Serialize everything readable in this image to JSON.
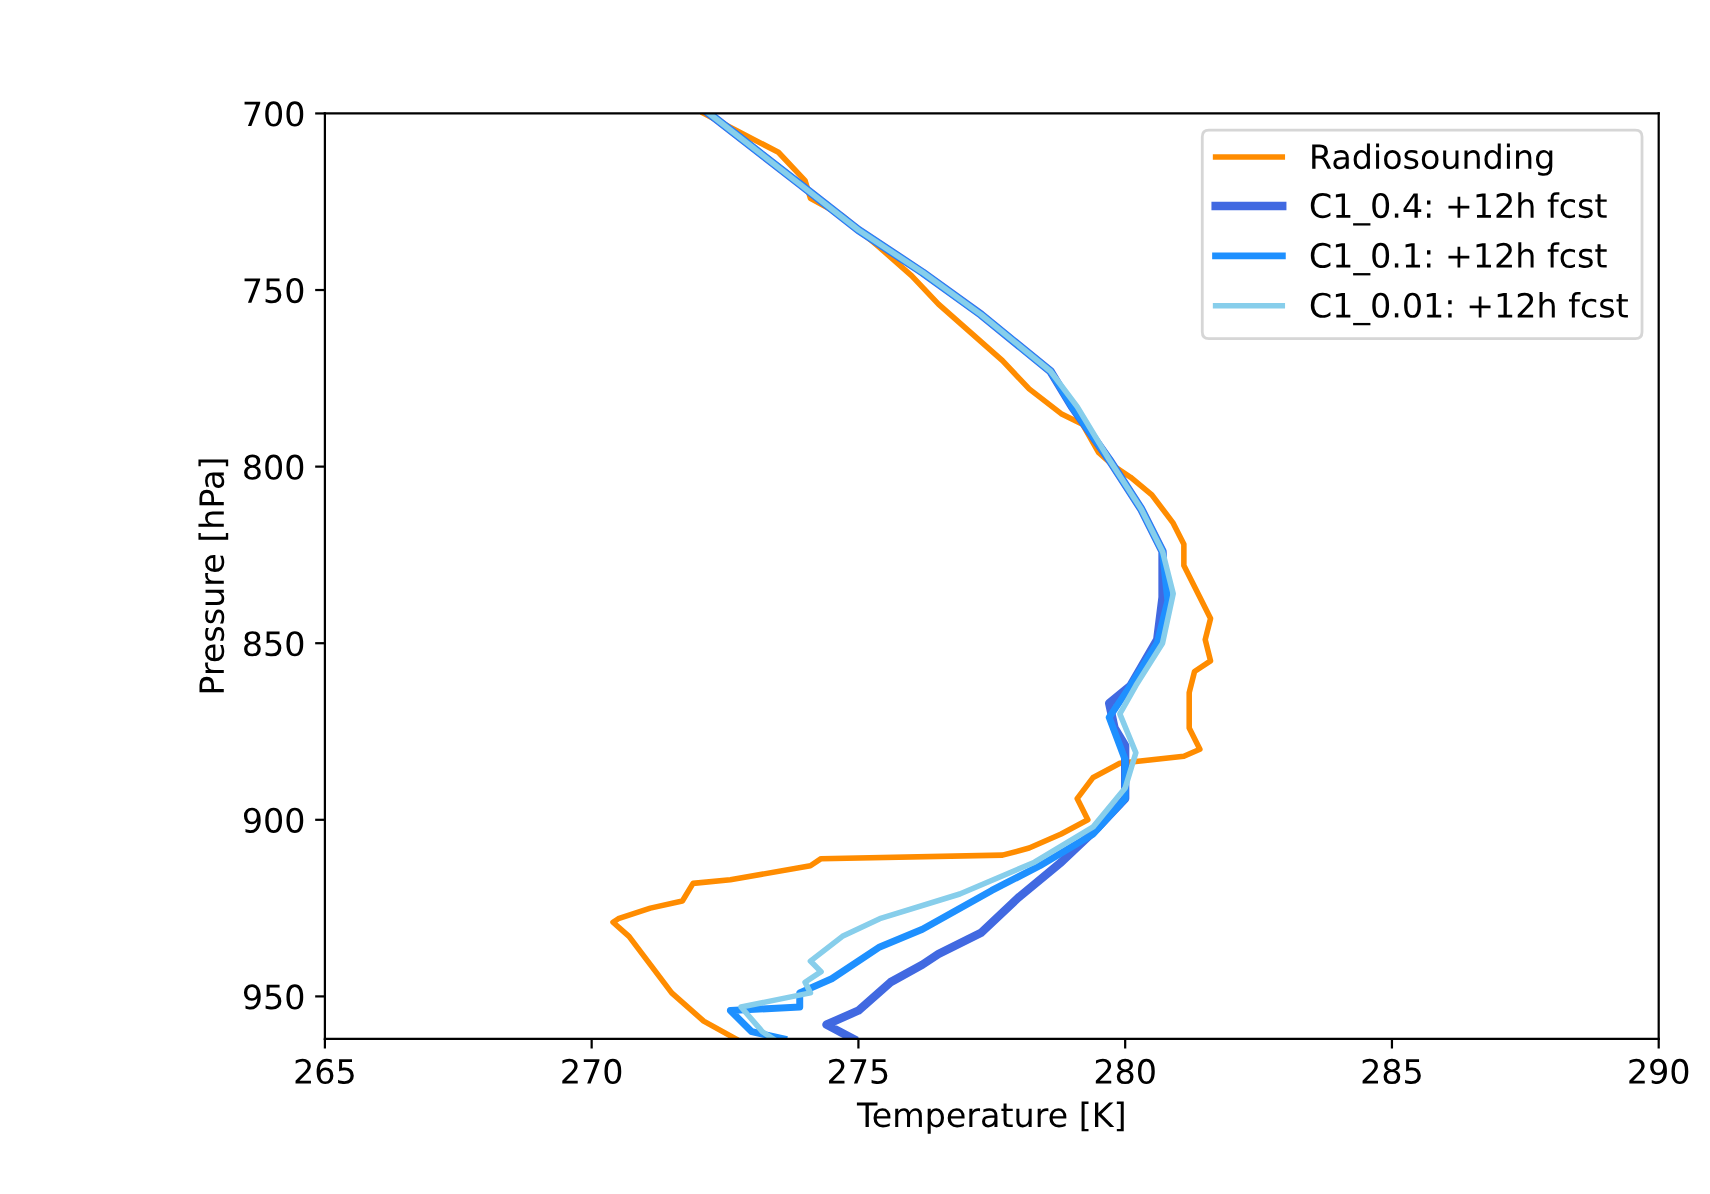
{
  "chart_data": {
    "type": "line",
    "xlabel": "Temperature [K]",
    "ylabel": "Pressure [hPa]",
    "xlim": [
      265,
      290
    ],
    "xticks": [
      265,
      270,
      275,
      280,
      285,
      290
    ],
    "ylim": [
      962,
      700
    ],
    "yticks": [
      700,
      750,
      800,
      850,
      900,
      950
    ],
    "grid": false,
    "legend": "top right",
    "marker": "none",
    "line_style": "solid",
    "series": [
      {
        "name": "Radiosounding",
        "color": "#ff8c00",
        "x": [
          272.1,
          273.5,
          274.0,
          274.1,
          274.7,
          275.4,
          276.0,
          276.5,
          277.1,
          277.7,
          278.2,
          278.8,
          279.2,
          279.5,
          279.8,
          280.1,
          280.5,
          280.9,
          281.1,
          281.1,
          281.4,
          281.6,
          281.5,
          281.6,
          281.3,
          281.2,
          281.2,
          281.2,
          281.4,
          281.1,
          279.9,
          279.4,
          279.1,
          279.3,
          278.8,
          278.2,
          277.7,
          274.3,
          274.1,
          272.6,
          271.9,
          271.7,
          271.1,
          270.5,
          270.4,
          270.7,
          271.1,
          271.5,
          272.1,
          272.7
        ],
        "values": [
          700,
          711,
          719,
          724,
          729,
          738,
          746,
          754,
          762,
          770,
          778,
          785,
          788,
          796,
          800,
          803,
          808,
          816,
          822,
          828,
          837,
          843,
          849,
          855,
          858,
          864,
          870,
          874,
          880,
          882,
          884,
          888,
          894,
          900,
          904,
          908,
          910,
          911,
          913,
          917,
          918,
          923,
          925,
          928,
          929,
          933,
          941,
          949,
          957,
          962
        ]
      },
      {
        "name": "C1_0.4: +12h fcst",
        "color": "#4169e1",
        "x": [
          272.2,
          273.9,
          275.0,
          276.2,
          277.3,
          278.6,
          279.0,
          279.7,
          280.3,
          280.7,
          280.7,
          280.6,
          280.1,
          279.7,
          279.8,
          280.0,
          280.0,
          280.0,
          279.5,
          278.8,
          278.0,
          277.3,
          276.5,
          276.2,
          275.6,
          275.0,
          274.4,
          274.9
        ],
        "values": [
          700,
          720,
          733,
          745,
          757,
          773,
          783,
          798,
          812,
          824,
          837,
          849,
          862,
          867,
          874,
          879,
          886,
          894,
          902,
          912,
          922,
          932,
          938,
          941,
          946,
          954,
          958,
          962
        ]
      },
      {
        "name": "C1_0.1: +12h fcst",
        "color": "#1e90ff",
        "x": [
          272.2,
          273.9,
          275.0,
          276.2,
          277.3,
          278.6,
          279.0,
          279.7,
          280.3,
          280.7,
          280.8,
          280.6,
          280.1,
          279.7,
          280.0,
          280.0,
          279.4,
          278.4,
          277.5,
          276.2,
          275.4,
          274.5,
          273.9,
          273.9,
          272.6,
          273.0,
          273.6
        ],
        "values": [
          700,
          720,
          733,
          745,
          757,
          773,
          783,
          798,
          812,
          824,
          838,
          850,
          862,
          871,
          883,
          894,
          904,
          913,
          920,
          931,
          936,
          945,
          949,
          953,
          954,
          960,
          962
        ]
      },
      {
        "name": "C1_0.01: +12h fcst",
        "color": "#87ceeb",
        "x": [
          272.2,
          273.9,
          275.0,
          276.2,
          277.3,
          278.6,
          279.1,
          279.7,
          280.3,
          280.7,
          280.9,
          280.7,
          280.2,
          279.9,
          280.2,
          280.0,
          279.4,
          278.3,
          276.9,
          275.4,
          274.7,
          274.1,
          274.3,
          274.0,
          274.1,
          272.8,
          273.2,
          273.4
        ],
        "values": [
          700,
          720,
          733,
          745,
          757,
          773,
          783,
          798,
          812,
          824,
          836,
          850,
          862,
          870,
          881,
          891,
          902,
          912,
          921,
          928,
          933,
          940,
          943,
          946,
          949,
          953,
          960,
          962
        ]
      }
    ]
  }
}
